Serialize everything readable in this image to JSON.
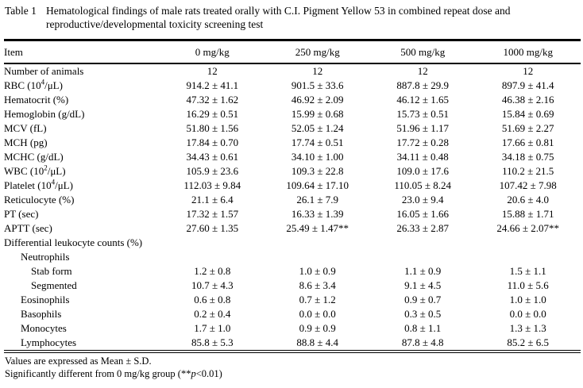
{
  "colors": {
    "ink": "#000000",
    "background": "#ffffff"
  },
  "caption": {
    "label": "Table 1",
    "line1": "Hematological findings of male rats treated orally with C.I. Pigment Yellow 53 in combined repeat dose and",
    "line2": "reproductive/developmental toxicity screening test"
  },
  "table": {
    "columns": [
      "Item",
      "0 mg/kg",
      "250 mg/kg",
      "500 mg/kg",
      "1000 mg/kg"
    ],
    "rows": [
      {
        "indent": 0,
        "label": [
          {
            "t": "Number of animals"
          }
        ],
        "values": [
          "12",
          "12",
          "12",
          "12"
        ]
      },
      {
        "indent": 0,
        "label": [
          {
            "t": "RBC (10"
          },
          {
            "t": "4",
            "sup": true
          },
          {
            "t": "/μL)"
          }
        ],
        "values": [
          "914.2 ± 41.1",
          "901.5 ± 33.6",
          "887.8 ± 29.9",
          "897.9 ± 41.4"
        ]
      },
      {
        "indent": 0,
        "label": [
          {
            "t": "Hematocrit (%)"
          }
        ],
        "values": [
          "47.32 ± 1.62",
          "46.92 ± 2.09",
          "46.12 ± 1.65",
          "46.38 ± 2.16"
        ]
      },
      {
        "indent": 0,
        "label": [
          {
            "t": "Hemoglobin (g/dL)"
          }
        ],
        "values": [
          "16.29 ± 0.51",
          "15.99 ± 0.68",
          "15.73 ± 0.51",
          "15.84 ± 0.69"
        ]
      },
      {
        "indent": 0,
        "label": [
          {
            "t": "MCV (fL)"
          }
        ],
        "values": [
          "51.80 ± 1.56",
          "52.05 ± 1.24",
          "51.96 ± 1.17",
          "51.69 ± 2.27"
        ]
      },
      {
        "indent": 0,
        "label": [
          {
            "t": "MCH (pg)"
          }
        ],
        "values": [
          "17.84 ± 0.70",
          "17.74 ± 0.51",
          "17.72 ± 0.28",
          "17.66 ± 0.81"
        ]
      },
      {
        "indent": 0,
        "label": [
          {
            "t": "MCHC (g/dL)"
          }
        ],
        "values": [
          "34.43 ± 0.61",
          "34.10 ± 1.00",
          "34.11 ± 0.48",
          "34.18 ± 0.75"
        ]
      },
      {
        "indent": 0,
        "label": [
          {
            "t": "WBC (10"
          },
          {
            "t": "2",
            "sup": true
          },
          {
            "t": "/μL)"
          }
        ],
        "values": [
          "105.9 ± 23.6",
          "109.3 ± 22.8",
          "109.0 ± 17.6",
          "110.2 ± 21.5"
        ]
      },
      {
        "indent": 0,
        "label": [
          {
            "t": "Platelet (10"
          },
          {
            "t": "4",
            "sup": true
          },
          {
            "t": "/μL)"
          }
        ],
        "values": [
          "112.03 ± 9.84",
          "109.64 ± 17.10",
          "110.05 ± 8.24",
          "107.42 ± 7.98"
        ]
      },
      {
        "indent": 0,
        "label": [
          {
            "t": "Reticulocyte (%)"
          }
        ],
        "values": [
          "21.1 ± 6.4",
          "26.1 ± 7.9",
          "23.0 ± 9.4",
          "20.6 ± 4.0"
        ]
      },
      {
        "indent": 0,
        "label": [
          {
            "t": "PT (sec)"
          }
        ],
        "values": [
          "17.32 ± 1.57",
          "16.33 ± 1.39",
          "16.05 ± 1.66",
          "15.88 ± 1.71"
        ]
      },
      {
        "indent": 0,
        "label": [
          {
            "t": "APTT (sec)"
          }
        ],
        "values": [
          "27.60 ± 1.35",
          "25.49 ± 1.47**",
          "26.33 ± 2.87",
          "24.66 ± 2.07**"
        ]
      },
      {
        "indent": 0,
        "label": [
          {
            "t": "Differential leukocyte counts (%)"
          }
        ],
        "values": [
          "",
          "",
          "",
          ""
        ]
      },
      {
        "indent": 1,
        "label": [
          {
            "t": "Neutrophils"
          }
        ],
        "values": [
          "",
          "",
          "",
          ""
        ]
      },
      {
        "indent": 2,
        "label": [
          {
            "t": "Stab form"
          }
        ],
        "values": [
          "1.2 ± 0.8",
          "1.0 ± 0.9",
          "1.1 ± 0.9",
          "1.5 ± 1.1"
        ]
      },
      {
        "indent": 2,
        "label": [
          {
            "t": "Segmented"
          }
        ],
        "values": [
          "10.7 ± 4.3",
          "8.6 ± 3.4",
          "9.1 ± 4.5",
          "11.0 ± 5.6"
        ]
      },
      {
        "indent": 1,
        "label": [
          {
            "t": "Eosinophils"
          }
        ],
        "values": [
          "0.6 ± 0.8",
          "0.7 ± 1.2",
          "0.9 ± 0.7",
          "1.0 ± 1.0"
        ]
      },
      {
        "indent": 1,
        "label": [
          {
            "t": "Basophils"
          }
        ],
        "values": [
          "0.2 ± 0.4",
          "0.0 ± 0.0",
          "0.3 ± 0.5",
          "0.0 ± 0.0"
        ]
      },
      {
        "indent": 1,
        "label": [
          {
            "t": "Monocytes"
          }
        ],
        "values": [
          "1.7 ± 1.0",
          "0.9 ± 0.9",
          "0.8 ± 1.1",
          "1.3 ± 1.3"
        ]
      },
      {
        "indent": 1,
        "label": [
          {
            "t": "Lymphocytes"
          }
        ],
        "values": [
          "85.8 ± 5.3",
          "88.8 ± 4.4",
          "87.8 ± 4.8",
          "85.2 ± 6.5"
        ]
      }
    ]
  },
  "footnotes": {
    "line1": "Values are expressed as Mean ± S.D.",
    "line2_pre": "Significantly different from 0 mg/kg group (**",
    "line2_italic": "p",
    "line2_post": "<0.01)"
  }
}
